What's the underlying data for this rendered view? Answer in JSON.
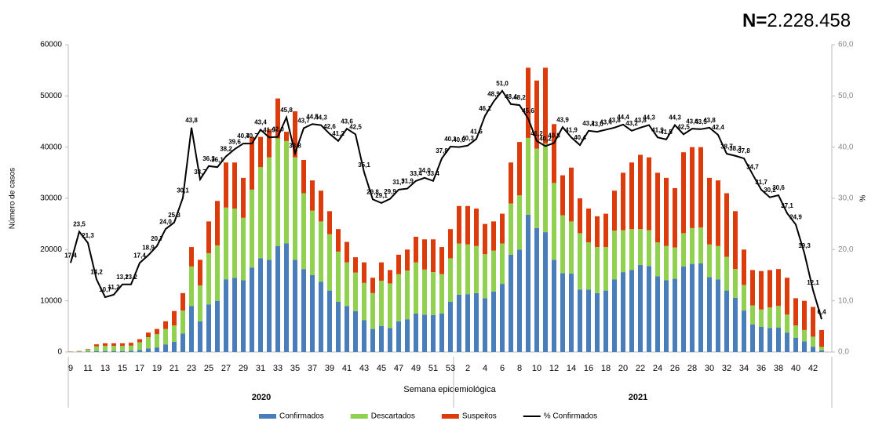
{
  "chart_data": {
    "type": "bar",
    "annotation_prefix": "N=",
    "annotation_value": "2.228.458",
    "y_label": "Número de casos",
    "y2_label": "%",
    "x_label": "Semana epidemiológica",
    "years": [
      "2020",
      "2021"
    ],
    "categories": [
      "9",
      null,
      "11",
      null,
      "13",
      null,
      "15",
      null,
      "17",
      null,
      "19",
      null,
      "21",
      null,
      "23",
      null,
      "25",
      null,
      "27",
      null,
      "29",
      null,
      "31",
      null,
      "33",
      null,
      "35",
      null,
      "37",
      null,
      "39",
      null,
      "41",
      null,
      "43",
      null,
      "45",
      null,
      "47",
      null,
      "49",
      null,
      "51",
      null,
      "53",
      null,
      "2",
      null,
      "4",
      null,
      "6",
      null,
      "8",
      null,
      "10",
      null,
      "12",
      null,
      "14",
      null,
      "16",
      null,
      "18",
      null,
      "20",
      null,
      "22",
      null,
      "24",
      null,
      "26",
      null,
      "28",
      null,
      "30",
      null,
      "32",
      null,
      "34",
      null,
      "36",
      null,
      "38",
      null,
      "40",
      null,
      "42",
      null
    ],
    "ylim": [
      0,
      60000
    ],
    "yticks": [
      0,
      10000,
      20000,
      30000,
      40000,
      50000,
      60000
    ],
    "y2lim": [
      0,
      60
    ],
    "y2ticks": [
      {
        "value": 0,
        "label": "0,0"
      },
      {
        "value": 10,
        "label": "10,0"
      },
      {
        "value": 20,
        "label": "20,0"
      },
      {
        "value": 30,
        "label": "30,0"
      },
      {
        "value": 40,
        "label": "40,0"
      },
      {
        "value": 50,
        "label": "50,0"
      },
      {
        "value": 60,
        "label": "60,0"
      }
    ],
    "series": [
      {
        "name": "Confirmados",
        "color": "#4a7ebb",
        "values": [
          0,
          50,
          100,
          200,
          200,
          200,
          200,
          250,
          400,
          700,
          900,
          1500,
          2000,
          3600,
          9000,
          6000,
          9300,
          10000,
          14200,
          14500,
          14000,
          16500,
          18300,
          18000,
          20700,
          21200,
          18000,
          16200,
          15000,
          13700,
          12000,
          9800,
          9000,
          8000,
          6200,
          4500,
          5100,
          4700,
          6000,
          6400,
          7500,
          7300,
          7200,
          7500,
          9800,
          11200,
          11300,
          11500,
          10500,
          11800,
          13300,
          19000,
          20000,
          26800,
          24200,
          23400,
          18000,
          15400,
          15300,
          12200,
          12200,
          11500,
          12000,
          14200,
          15600,
          16000,
          17000,
          16800,
          14800,
          14000,
          14300,
          16700,
          17200,
          17300,
          14600,
          14200,
          12000,
          10600,
          8100,
          5400,
          4900,
          4700,
          4800,
          3800,
          2800,
          2100,
          1000,
          300
        ]
      },
      {
        "name": "Descartados",
        "color": "#92d050",
        "values": [
          50,
          100,
          400,
          900,
          1000,
          1000,
          1000,
          1000,
          1500,
          2200,
          2600,
          3000,
          3200,
          4500,
          7700,
          7000,
          10000,
          10800,
          14000,
          13500,
          12200,
          15200,
          17800,
          20000,
          21000,
          20000,
          20000,
          14800,
          12600,
          11800,
          11000,
          9800,
          8500,
          7500,
          7300,
          7000,
          8800,
          8700,
          9200,
          9500,
          10000,
          8800,
          8400,
          7700,
          8500,
          10000,
          9700,
          9200,
          8600,
          8000,
          7900,
          10000,
          10600,
          15000,
          15500,
          17300,
          15000,
          11300,
          10200,
          11000,
          9200,
          9000,
          8500,
          9500,
          8200,
          8000,
          7000,
          7000,
          6600,
          6700,
          6100,
          6500,
          7000,
          7000,
          6400,
          6500,
          6600,
          5600,
          5000,
          3700,
          3400,
          4000,
          4200,
          3500,
          2400,
          2200,
          2000,
          700
        ]
      },
      {
        "name": "Suspeitos",
        "color": "#dc3c0c",
        "values": [
          50,
          50,
          100,
          400,
          500,
          500,
          500,
          550,
          600,
          900,
          1000,
          1500,
          2800,
          3400,
          3800,
          5000,
          6200,
          8700,
          8800,
          9000,
          7800,
          10300,
          5900,
          5500,
          7800,
          1800,
          9000,
          6500,
          5900,
          6000,
          4500,
          4400,
          4000,
          3000,
          4000,
          3000,
          3600,
          2600,
          3800,
          4100,
          5000,
          5900,
          6400,
          5300,
          5700,
          7300,
          7500,
          7300,
          5900,
          5700,
          5800,
          8000,
          10400,
          13700,
          13300,
          14800,
          11500,
          7800,
          10500,
          6800,
          6600,
          6000,
          6500,
          7800,
          11200,
          13000,
          14500,
          14200,
          13600,
          13300,
          11600,
          15800,
          15800,
          15700,
          13000,
          12800,
          12400,
          11300,
          6900,
          6900,
          7500,
          7300,
          7200,
          7200,
          5300,
          5700,
          5800,
          3300
        ]
      },
      {
        "name": "% Confirmados",
        "color": "#000000",
        "type": "line",
        "axis": "y2",
        "values": [
          17.4,
          23.5,
          21.3,
          14.2,
          10.7,
          11.2,
          13.2,
          13.2,
          17.4,
          18.9,
          20.7,
          24.0,
          25.3,
          30.1,
          43.8,
          33.7,
          36.3,
          36.1,
          38.2,
          39.6,
          40.7,
          40.7,
          43.4,
          41.9,
          42.0,
          45.8,
          38.8,
          43.7,
          44.5,
          44.3,
          42.6,
          41.2,
          43.6,
          42.5,
          35.1,
          29.8,
          29.1,
          29.9,
          31.7,
          31.9,
          33.4,
          34.0,
          33.4,
          37.8,
          40.1,
          40.0,
          40.3,
          41.6,
          46.1,
          48.9,
          51.0,
          48.4,
          48.2,
          45.6,
          41.2,
          40.2,
          40.8,
          43.9,
          41.9,
          40.4,
          43.2,
          43.0,
          43.4,
          43.8,
          44.4,
          43.2,
          43.8,
          44.3,
          41.9,
          41.5,
          44.3,
          42.5,
          43.6,
          43.5,
          43.8,
          42.4,
          38.7,
          38.3,
          37.8,
          34.7,
          31.7,
          30.2,
          30.6,
          27.1,
          24.9,
          19.3,
          12.1,
          6.4
        ],
        "value_labels": [
          "17,4",
          "23,5",
          "21,3",
          "14,2",
          "10,7",
          "11,2",
          "13,2",
          "13,2",
          "17,4",
          "18,9",
          "20,7",
          "24,0",
          "25,3",
          "30,1",
          "43,8",
          "33,7",
          "36,3",
          "36,1",
          "38,2",
          "39,6",
          "40,7",
          "40,7",
          "43,4",
          "41,9",
          "42,0",
          "45,8",
          "38,8",
          "43,7",
          "44,5",
          "44,3",
          "42,6",
          "41,2",
          "43,6",
          "42,5",
          "35,1",
          "29,8",
          "29,1",
          "29,9",
          "31,7",
          "31,9",
          "33,4",
          "34,0",
          "33,4",
          "37,8",
          "40,1",
          "40,0",
          "40,3",
          "41,6",
          "46,1",
          "48,9",
          "51,0",
          "48,4",
          "48,2",
          "45,6",
          "41,2",
          "40,2",
          "40,8",
          "43,9",
          "41,9",
          "40,4",
          "43,2",
          "43,0",
          "43,4",
          "43,8",
          "44,4",
          "43,2",
          "43,8",
          "44,3",
          "41,9",
          "41,5",
          "44,3",
          "42,5",
          "43,6",
          "43,5",
          "43,8",
          "42,4",
          "38,7",
          "38,3",
          "37,8",
          "34,7",
          "31,7",
          "30,2",
          "30,6",
          "27,1",
          "24,9",
          "19,3",
          "12,1",
          "6,4"
        ]
      }
    ]
  }
}
